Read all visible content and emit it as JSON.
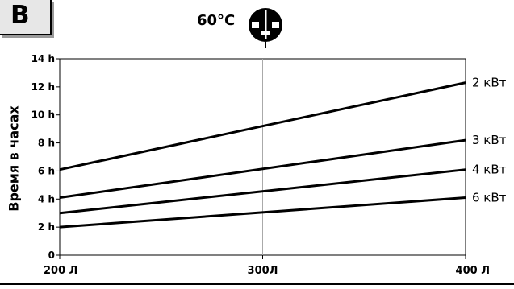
{
  "badge": "B",
  "temperature": "60°C",
  "chart_data": {
    "type": "line",
    "ylabel": "Время в часах",
    "xlabel": "",
    "x_ticks": [
      {
        "value": 200,
        "label": "200 Л"
      },
      {
        "value": 300,
        "label": "300Л"
      },
      {
        "value": 400,
        "label": "400 Л"
      }
    ],
    "y_ticks": [
      {
        "value": 0,
        "label": "0"
      },
      {
        "value": 2,
        "label": "2 h"
      },
      {
        "value": 4,
        "label": "4 h"
      },
      {
        "value": 6,
        "label": "6 h"
      },
      {
        "value": 8,
        "label": "8 h"
      },
      {
        "value": 10,
        "label": "10 h"
      },
      {
        "value": 12,
        "label": "12 h"
      },
      {
        "value": 14,
        "label": "14 h"
      }
    ],
    "xlim": [
      200,
      400
    ],
    "ylim": [
      0,
      14
    ],
    "grid": "vertical line at 300",
    "series": [
      {
        "name": "2 кВт",
        "x": [
          200,
          400
        ],
        "y": [
          6.1,
          12.3
        ]
      },
      {
        "name": "3 кВт",
        "x": [
          200,
          400
        ],
        "y": [
          4.1,
          8.2
        ]
      },
      {
        "name": "4 кВт",
        "x": [
          200,
          400
        ],
        "y": [
          3.0,
          6.1
        ]
      },
      {
        "name": "6 кВт",
        "x": [
          200,
          400
        ],
        "y": [
          2.0,
          4.1
        ]
      }
    ],
    "legend": "labels at right end of each line"
  }
}
